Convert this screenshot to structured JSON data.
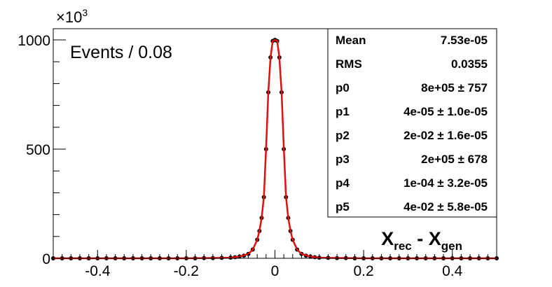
{
  "chart_data": {
    "type": "scatter",
    "title": "",
    "annotation": "Events / 0.08",
    "xlabel": {
      "main1": "X",
      "sub1": "rec",
      "sep": " - ",
      "main2": "X",
      "sub2": "gen"
    },
    "ylabel": "",
    "y_multiplier": {
      "base": "×10",
      "exp": "3"
    },
    "xlim": [
      -0.5,
      0.5
    ],
    "ylim": [
      0,
      1000
    ],
    "x_ticks": [
      -0.4,
      -0.2,
      0,
      0.2,
      0.4
    ],
    "x_tick_labels": [
      "-0.4",
      "-0.2",
      "0",
      "0.2",
      "0.4"
    ],
    "y_ticks": [
      0,
      500,
      1000
    ],
    "y_tick_labels": [
      "0",
      "500",
      "1000"
    ],
    "grid": false,
    "legend": "none",
    "series": [
      {
        "kind": "points",
        "color": "#000000",
        "x": [
          -0.5,
          -0.48,
          -0.46,
          -0.44,
          -0.42,
          -0.4,
          -0.38,
          -0.36,
          -0.34,
          -0.32,
          -0.3,
          -0.28,
          -0.26,
          -0.24,
          -0.22,
          -0.2,
          -0.18,
          -0.16,
          -0.14,
          -0.12,
          -0.1,
          -0.09,
          -0.08,
          -0.07,
          -0.06,
          -0.05,
          -0.04,
          -0.035,
          -0.03,
          -0.025,
          -0.02,
          -0.015,
          -0.01,
          -0.005,
          0,
          0.005,
          0.01,
          0.015,
          0.02,
          0.025,
          0.03,
          0.035,
          0.04,
          0.05,
          0.06,
          0.07,
          0.08,
          0.09,
          0.1,
          0.12,
          0.14,
          0.16,
          0.18,
          0.2,
          0.22,
          0.24,
          0.26,
          0.28,
          0.3,
          0.32,
          0.34,
          0.36,
          0.38,
          0.4,
          0.42,
          0.44,
          0.46,
          0.48,
          0.5
        ],
        "y": [
          0,
          0,
          0,
          0,
          0,
          0,
          0,
          0,
          0,
          0,
          0,
          0,
          0,
          0,
          0,
          0,
          0,
          1,
          1,
          2,
          3,
          5,
          8,
          12,
          20,
          40,
          85,
          125,
          185,
          280,
          500,
          760,
          920,
          995,
          1000,
          995,
          920,
          760,
          500,
          280,
          185,
          125,
          85,
          40,
          20,
          12,
          8,
          5,
          3,
          2,
          1,
          1,
          0,
          0,
          0,
          0,
          0,
          0,
          0,
          0,
          0,
          0,
          0,
          0,
          0,
          0,
          0,
          0,
          0
        ]
      },
      {
        "kind": "fit",
        "color": "#e01010",
        "x": [
          -0.5,
          -0.2,
          -0.12,
          -0.1,
          -0.08,
          -0.06,
          -0.05,
          -0.04,
          -0.035,
          -0.03,
          -0.025,
          -0.02,
          -0.015,
          -0.01,
          -0.005,
          0,
          0.005,
          0.01,
          0.015,
          0.02,
          0.025,
          0.03,
          0.035,
          0.04,
          0.05,
          0.06,
          0.08,
          0.1,
          0.12,
          0.2,
          0.5
        ],
        "y": [
          0,
          0,
          2,
          3,
          8,
          20,
          40,
          85,
          125,
          185,
          280,
          500,
          760,
          920,
          995,
          1000,
          995,
          920,
          760,
          500,
          280,
          185,
          125,
          85,
          40,
          20,
          8,
          3,
          2,
          0,
          0
        ]
      }
    ]
  },
  "stats": [
    {
      "name": "Mean",
      "value": "7.53e-05"
    },
    {
      "name": "RMS",
      "value": "0.0355"
    },
    {
      "name": "p0",
      "value": "8e+05 ± 757"
    },
    {
      "name": "p1",
      "value": "4e-05 ± 1.0e-05"
    },
    {
      "name": "p2",
      "value": "2e-02 ± 1.6e-05"
    },
    {
      "name": "p3",
      "value": "2e+05 ± 678"
    },
    {
      "name": "p4",
      "value": "1e-04 ± 3.2e-05"
    },
    {
      "name": "p5",
      "value": "4e-02 ± 5.8e-05"
    }
  ]
}
